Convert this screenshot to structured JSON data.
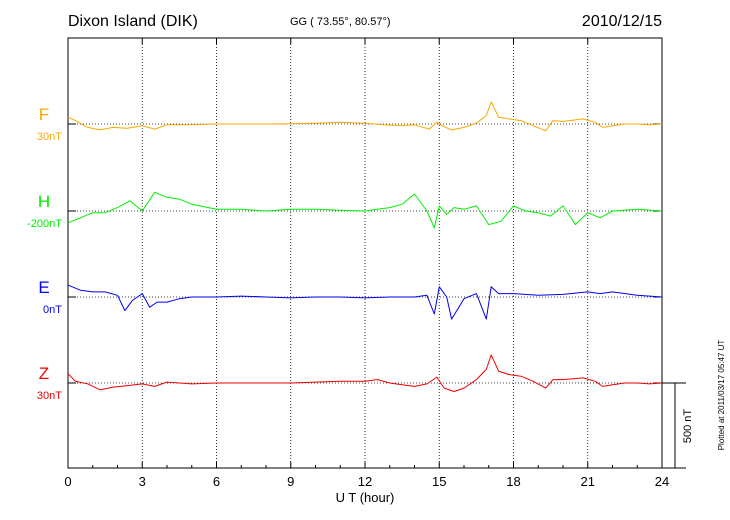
{
  "header": {
    "station": "Dixon Island (DIK)",
    "coords": "GG ( 73.55°,  80.57°)",
    "date": "2010/12/15"
  },
  "side_note": "Plotted at 2011/03/17 05:47 UT",
  "scale_bar_label": "500 nT",
  "chart_data": {
    "type": "line",
    "xlabel": "U T (hour)",
    "xlim": [
      0,
      24
    ],
    "x_ticks": [
      "0",
      "3",
      "6",
      "9",
      "12",
      "15",
      "18",
      "21",
      "24"
    ],
    "grid": "dotted vertical every 3 hours; dotted baseline per trace",
    "scale_nT": 500,
    "series": [
      {
        "name": "F",
        "offset_label": "30nT",
        "color": "#f5a800",
        "x": [
          0,
          0.3,
          0.8,
          1.3,
          1.8,
          2.4,
          3.0,
          3.5,
          4.0,
          4.8,
          6.0,
          7.0,
          8.0,
          9.0,
          10.0,
          11.0,
          12.0,
          12.8,
          13.5,
          14.0,
          14.6,
          14.9,
          15.1,
          15.5,
          16.0,
          16.5,
          16.9,
          17.1,
          17.4,
          17.8,
          18.3,
          18.8,
          19.3,
          19.6,
          20.0,
          20.8,
          21.3,
          21.6,
          22.0,
          22.5,
          23.0,
          23.5,
          24.0
        ],
        "values": [
          40,
          20,
          -20,
          -35,
          -20,
          -25,
          -10,
          -30,
          -5,
          -5,
          0,
          0,
          0,
          2,
          5,
          10,
          5,
          -5,
          -10,
          -5,
          -30,
          10,
          -10,
          -35,
          -20,
          5,
          50,
          130,
          40,
          30,
          20,
          -10,
          -40,
          20,
          15,
          30,
          10,
          -20,
          -10,
          0,
          0,
          -5,
          0
        ]
      },
      {
        "name": "H",
        "offset_label": "-200nT",
        "color": "#00ee00",
        "x": [
          0,
          0.5,
          1.0,
          1.5,
          2.0,
          2.5,
          3.0,
          3.5,
          4.0,
          4.5,
          5.0,
          6.0,
          7.0,
          8.0,
          9.0,
          10.0,
          11.0,
          12.0,
          13.0,
          13.5,
          14.0,
          14.5,
          14.8,
          15.0,
          15.3,
          15.6,
          16.0,
          16.5,
          17.0,
          17.5,
          18.0,
          18.5,
          19.0,
          19.5,
          20.0,
          20.5,
          21.0,
          21.5,
          22.0,
          23.0,
          24.0
        ],
        "values": [
          -70,
          -40,
          -10,
          -10,
          20,
          60,
          0,
          110,
          80,
          70,
          40,
          10,
          10,
          0,
          10,
          10,
          5,
          0,
          20,
          40,
          100,
          0,
          -100,
          30,
          -20,
          20,
          10,
          30,
          -80,
          -60,
          30,
          0,
          -10,
          -30,
          30,
          -80,
          -10,
          -40,
          0,
          10,
          0
        ]
      },
      {
        "name": "E",
        "offset_label": "0nT",
        "color": "#0000ee",
        "x": [
          0,
          0.5,
          1.0,
          1.5,
          2.0,
          2.3,
          2.6,
          3.0,
          3.3,
          3.6,
          4.0,
          4.5,
          5.0,
          6.0,
          7.0,
          8.0,
          9.0,
          10.0,
          11.0,
          12.0,
          13.0,
          14.0,
          14.5,
          14.8,
          15.0,
          15.3,
          15.5,
          16.0,
          16.5,
          16.9,
          17.1,
          17.4,
          18.0,
          19.0,
          20.0,
          21.0,
          21.5,
          22.0,
          23.0,
          24.0
        ],
        "values": [
          70,
          40,
          30,
          30,
          10,
          -80,
          -20,
          20,
          -60,
          -30,
          -30,
          -10,
          0,
          0,
          5,
          0,
          -5,
          0,
          0,
          -5,
          0,
          0,
          10,
          -100,
          60,
          0,
          -130,
          -10,
          20,
          -130,
          60,
          20,
          20,
          10,
          15,
          30,
          20,
          30,
          10,
          0
        ]
      },
      {
        "name": "Z",
        "offset_label": "30nT",
        "color": "#ee0000",
        "x": [
          0,
          0.3,
          0.8,
          1.3,
          1.8,
          2.4,
          3.0,
          3.5,
          4.0,
          5.0,
          6.0,
          7.0,
          8.0,
          9.0,
          10.0,
          11.0,
          12.0,
          12.5,
          13.0,
          13.5,
          14.0,
          14.5,
          14.9,
          15.2,
          15.6,
          16.0,
          16.5,
          16.9,
          17.1,
          17.4,
          17.8,
          18.3,
          18.8,
          19.3,
          19.6,
          20.0,
          20.8,
          21.3,
          21.6,
          22.0,
          22.5,
          23.0,
          23.5,
          24.0
        ],
        "values": [
          55,
          10,
          -5,
          -40,
          -25,
          -15,
          -5,
          -20,
          5,
          -5,
          0,
          0,
          0,
          0,
          5,
          10,
          10,
          20,
          0,
          -10,
          -20,
          -5,
          35,
          -30,
          -50,
          -30,
          20,
          80,
          165,
          70,
          50,
          40,
          10,
          -30,
          20,
          20,
          30,
          10,
          -20,
          -10,
          0,
          0,
          -5,
          0
        ]
      }
    ]
  }
}
